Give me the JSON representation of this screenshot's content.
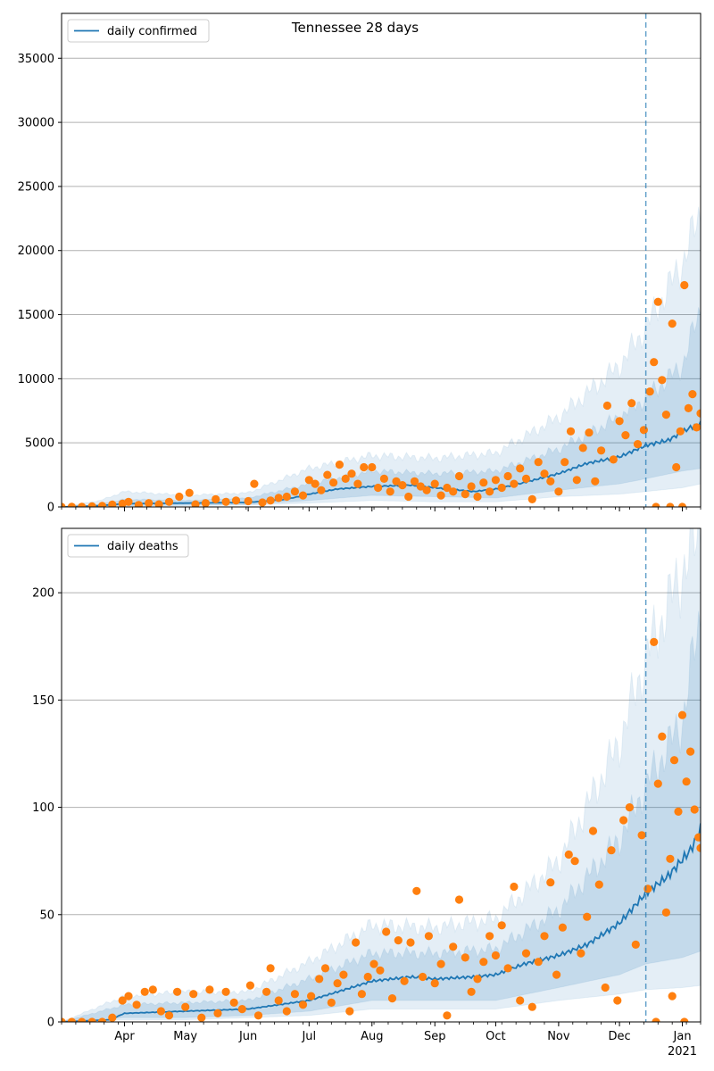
{
  "title": "Tennessee 28 days",
  "colors": {
    "line": "#1f77b4",
    "points": "#ff7f0e",
    "band": "#1f77b4",
    "grid": "#b0b0b0",
    "vline": "#1f77b4"
  },
  "x_axis": {
    "start": "2020-03-01",
    "end": "2021-01-10",
    "month_labels": [
      "Apr",
      "May",
      "Jun",
      "Jul",
      "Aug",
      "Sep",
      "Oct",
      "Nov",
      "Dec",
      "Jan"
    ],
    "month_dates": [
      "2020-04-01",
      "2020-05-01",
      "2020-06-01",
      "2020-07-01",
      "2020-08-01",
      "2020-09-01",
      "2020-10-01",
      "2020-11-01",
      "2020-12-01",
      "2021-01-01"
    ],
    "year_label": "2021",
    "vline_date": "2020-12-14"
  },
  "chart_data": [
    {
      "type": "line",
      "id": "confirmed",
      "legend": "daily confirmed",
      "legend_position": "top-left",
      "ylim": [
        0,
        38500
      ],
      "yticks": [
        0,
        5000,
        10000,
        15000,
        20000,
        25000,
        30000,
        35000
      ],
      "grid": true,
      "fit_knots": [
        [
          "2020-03-01",
          0
        ],
        [
          "2020-03-20",
          100
        ],
        [
          "2020-04-01",
          250
        ],
        [
          "2020-05-01",
          300
        ],
        [
          "2020-06-01",
          350
        ],
        [
          "2020-06-20",
          600
        ],
        [
          "2020-07-01",
          1000
        ],
        [
          "2020-07-15",
          1400
        ],
        [
          "2020-08-01",
          1600
        ],
        [
          "2020-08-20",
          1700
        ],
        [
          "2020-09-01",
          1500
        ],
        [
          "2020-09-20",
          1200
        ],
        [
          "2020-10-01",
          1400
        ],
        [
          "2020-10-15",
          1900
        ],
        [
          "2020-11-01",
          2600
        ],
        [
          "2020-11-15",
          3400
        ],
        [
          "2020-12-01",
          3900
        ],
        [
          "2020-12-14",
          4800
        ],
        [
          "2020-12-25",
          5200
        ],
        [
          "2021-01-05",
          6200
        ],
        [
          "2021-01-10",
          6500
        ]
      ],
      "band_knots": [
        [
          "2020-03-01",
          0,
          0,
          0,
          0
        ],
        [
          "2020-03-20",
          500,
          200,
          50,
          20
        ],
        [
          "2020-04-01",
          1200,
          600,
          100,
          50
        ],
        [
          "2020-05-01",
          900,
          500,
          150,
          100
        ],
        [
          "2020-06-01",
          1100,
          700,
          200,
          150
        ],
        [
          "2020-07-01",
          3000,
          1800,
          500,
          300
        ],
        [
          "2020-08-01",
          4000,
          2800,
          900,
          500
        ],
        [
          "2020-09-01",
          3800,
          2600,
          800,
          400
        ],
        [
          "2020-10-01",
          4200,
          2800,
          700,
          400
        ],
        [
          "2020-11-01",
          7000,
          4500,
          1300,
          800
        ],
        [
          "2020-12-01",
          11000,
          7000,
          1800,
          1000
        ],
        [
          "2020-12-14",
          14000,
          8500,
          2200,
          1200
        ],
        [
          "2021-01-01",
          19000,
          11000,
          2800,
          1500
        ],
        [
          "2021-01-10",
          23000,
          15500,
          3000,
          1800
        ]
      ],
      "observed": [
        [
          "2020-03-01",
          0
        ],
        [
          "2020-03-06",
          5
        ],
        [
          "2020-03-11",
          10
        ],
        [
          "2020-03-16",
          40
        ],
        [
          "2020-03-21",
          80
        ],
        [
          "2020-03-26",
          180
        ],
        [
          "2020-03-31",
          250
        ],
        [
          "2020-04-03",
          400
        ],
        [
          "2020-04-08",
          150
        ],
        [
          "2020-04-13",
          300
        ],
        [
          "2020-04-18",
          200
        ],
        [
          "2020-04-23",
          400
        ],
        [
          "2020-04-28",
          800
        ],
        [
          "2020-05-03",
          1100
        ],
        [
          "2020-05-06",
          200
        ],
        [
          "2020-05-11",
          300
        ],
        [
          "2020-05-16",
          600
        ],
        [
          "2020-05-21",
          400
        ],
        [
          "2020-05-26",
          500
        ],
        [
          "2020-06-01",
          450
        ],
        [
          "2020-06-04",
          1800
        ],
        [
          "2020-06-08",
          350
        ],
        [
          "2020-06-12",
          500
        ],
        [
          "2020-06-16",
          700
        ],
        [
          "2020-06-20",
          800
        ],
        [
          "2020-06-24",
          1200
        ],
        [
          "2020-06-28",
          900
        ],
        [
          "2020-07-01",
          2100
        ],
        [
          "2020-07-04",
          1800
        ],
        [
          "2020-07-07",
          1300
        ],
        [
          "2020-07-10",
          2500
        ],
        [
          "2020-07-13",
          1900
        ],
        [
          "2020-07-16",
          3300
        ],
        [
          "2020-07-19",
          2200
        ],
        [
          "2020-07-22",
          2600
        ],
        [
          "2020-07-25",
          1800
        ],
        [
          "2020-07-28",
          3100
        ],
        [
          "2020-08-01",
          3100
        ],
        [
          "2020-08-04",
          1500
        ],
        [
          "2020-08-07",
          2200
        ],
        [
          "2020-08-10",
          1200
        ],
        [
          "2020-08-13",
          2000
        ],
        [
          "2020-08-16",
          1700
        ],
        [
          "2020-08-19",
          800
        ],
        [
          "2020-08-22",
          2000
        ],
        [
          "2020-08-25",
          1600
        ],
        [
          "2020-08-28",
          1300
        ],
        [
          "2020-09-01",
          1800
        ],
        [
          "2020-09-04",
          900
        ],
        [
          "2020-09-07",
          1500
        ],
        [
          "2020-09-10",
          1200
        ],
        [
          "2020-09-13",
          2400
        ],
        [
          "2020-09-16",
          1000
        ],
        [
          "2020-09-19",
          1600
        ],
        [
          "2020-09-22",
          800
        ],
        [
          "2020-09-25",
          1900
        ],
        [
          "2020-09-28",
          1200
        ],
        [
          "2020-10-01",
          2100
        ],
        [
          "2020-10-04",
          1500
        ],
        [
          "2020-10-07",
          2400
        ],
        [
          "2020-10-10",
          1800
        ],
        [
          "2020-10-13",
          3000
        ],
        [
          "2020-10-16",
          2200
        ],
        [
          "2020-10-19",
          600
        ],
        [
          "2020-10-22",
          3500
        ],
        [
          "2020-10-25",
          2600
        ],
        [
          "2020-10-28",
          2000
        ],
        [
          "2020-11-01",
          1200
        ],
        [
          "2020-11-04",
          3500
        ],
        [
          "2020-11-07",
          5900
        ],
        [
          "2020-11-10",
          2100
        ],
        [
          "2020-11-13",
          4600
        ],
        [
          "2020-11-16",
          5800
        ],
        [
          "2020-11-19",
          2000
        ],
        [
          "2020-11-22",
          4400
        ],
        [
          "2020-11-25",
          7900
        ],
        [
          "2020-11-28",
          3700
        ],
        [
          "2020-12-01",
          6700
        ],
        [
          "2020-12-04",
          5600
        ],
        [
          "2020-12-07",
          8100
        ],
        [
          "2020-12-10",
          4900
        ],
        [
          "2020-12-13",
          6000
        ],
        [
          "2020-12-16",
          9000
        ],
        [
          "2020-12-18",
          11300
        ],
        [
          "2020-12-20",
          16000
        ],
        [
          "2020-12-22",
          9900
        ],
        [
          "2020-12-24",
          7200
        ],
        [
          "2020-12-27",
          14300
        ],
        [
          "2020-12-29",
          3100
        ],
        [
          "2020-12-31",
          5900
        ],
        [
          "2021-01-02",
          17300
        ],
        [
          "2021-01-04",
          7700
        ],
        [
          "2021-01-06",
          8800
        ],
        [
          "2021-01-08",
          6200
        ],
        [
          "2021-01-10",
          7300
        ],
        [
          "2020-12-19",
          0
        ],
        [
          "2020-12-26",
          0
        ],
        [
          "2021-01-01",
          0
        ]
      ]
    },
    {
      "type": "line",
      "id": "deaths",
      "legend": "daily deaths",
      "legend_position": "top-left",
      "ylim": [
        0,
        230
      ],
      "yticks": [
        0,
        50,
        100,
        150,
        200
      ],
      "grid": true,
      "fit_knots": [
        [
          "2020-03-01",
          0
        ],
        [
          "2020-03-25",
          1
        ],
        [
          "2020-04-01",
          4
        ],
        [
          "2020-05-01",
          5
        ],
        [
          "2020-06-01",
          6
        ],
        [
          "2020-07-01",
          10
        ],
        [
          "2020-07-15",
          14
        ],
        [
          "2020-08-01",
          19
        ],
        [
          "2020-08-20",
          21
        ],
        [
          "2020-09-01",
          20
        ],
        [
          "2020-09-20",
          21
        ],
        [
          "2020-10-01",
          22
        ],
        [
          "2020-10-15",
          27
        ],
        [
          "2020-11-01",
          31
        ],
        [
          "2020-11-15",
          36
        ],
        [
          "2020-12-01",
          46
        ],
        [
          "2020-12-14",
          60
        ],
        [
          "2020-12-25",
          68
        ],
        [
          "2021-01-05",
          80
        ],
        [
          "2021-01-10",
          90
        ]
      ],
      "band_knots": [
        [
          "2020-03-01",
          0,
          0,
          0,
          0
        ],
        [
          "2020-04-01",
          12,
          8,
          2,
          1
        ],
        [
          "2020-05-01",
          14,
          9,
          2,
          1
        ],
        [
          "2020-06-01",
          14,
          10,
          3,
          2
        ],
        [
          "2020-07-01",
          28,
          20,
          5,
          3
        ],
        [
          "2020-08-01",
          45,
          32,
          10,
          6
        ],
        [
          "2020-09-01",
          44,
          32,
          10,
          6
        ],
        [
          "2020-10-01",
          48,
          34,
          10,
          6
        ],
        [
          "2020-11-01",
          75,
          52,
          16,
          10
        ],
        [
          "2020-12-01",
          130,
          85,
          22,
          13
        ],
        [
          "2020-12-14",
          170,
          110,
          27,
          15
        ],
        [
          "2021-01-01",
          210,
          140,
          30,
          16
        ],
        [
          "2021-01-10",
          230,
          190,
          33,
          17
        ]
      ],
      "observed": [
        [
          "2020-03-01",
          0
        ],
        [
          "2020-03-06",
          0
        ],
        [
          "2020-03-11",
          0
        ],
        [
          "2020-03-16",
          0
        ],
        [
          "2020-03-21",
          0
        ],
        [
          "2020-03-26",
          2
        ],
        [
          "2020-03-31",
          10
        ],
        [
          "2020-04-03",
          12
        ],
        [
          "2020-04-07",
          8
        ],
        [
          "2020-04-11",
          14
        ],
        [
          "2020-04-15",
          15
        ],
        [
          "2020-04-19",
          5
        ],
        [
          "2020-04-23",
          3
        ],
        [
          "2020-04-27",
          14
        ],
        [
          "2020-05-01",
          7
        ],
        [
          "2020-05-05",
          13
        ],
        [
          "2020-05-09",
          2
        ],
        [
          "2020-05-13",
          15
        ],
        [
          "2020-05-17",
          4
        ],
        [
          "2020-05-21",
          14
        ],
        [
          "2020-05-25",
          9
        ],
        [
          "2020-05-29",
          6
        ],
        [
          "2020-06-02",
          17
        ],
        [
          "2020-06-06",
          3
        ],
        [
          "2020-06-10",
          14
        ],
        [
          "2020-06-12",
          25
        ],
        [
          "2020-06-16",
          10
        ],
        [
          "2020-06-20",
          5
        ],
        [
          "2020-06-24",
          13
        ],
        [
          "2020-06-28",
          8
        ],
        [
          "2020-07-02",
          12
        ],
        [
          "2020-07-06",
          20
        ],
        [
          "2020-07-09",
          25
        ],
        [
          "2020-07-12",
          9
        ],
        [
          "2020-07-15",
          18
        ],
        [
          "2020-07-18",
          22
        ],
        [
          "2020-07-21",
          5
        ],
        [
          "2020-07-24",
          37
        ],
        [
          "2020-07-27",
          13
        ],
        [
          "2020-07-30",
          21
        ],
        [
          "2020-08-02",
          27
        ],
        [
          "2020-08-05",
          24
        ],
        [
          "2020-08-08",
          42
        ],
        [
          "2020-08-11",
          11
        ],
        [
          "2020-08-14",
          38
        ],
        [
          "2020-08-17",
          19
        ],
        [
          "2020-08-20",
          37
        ],
        [
          "2020-08-23",
          61
        ],
        [
          "2020-08-26",
          21
        ],
        [
          "2020-08-29",
          40
        ],
        [
          "2020-09-01",
          18
        ],
        [
          "2020-09-04",
          27
        ],
        [
          "2020-09-07",
          3
        ],
        [
          "2020-09-10",
          35
        ],
        [
          "2020-09-13",
          57
        ],
        [
          "2020-09-16",
          30
        ],
        [
          "2020-09-19",
          14
        ],
        [
          "2020-09-22",
          20
        ],
        [
          "2020-09-25",
          28
        ],
        [
          "2020-09-28",
          40
        ],
        [
          "2020-10-01",
          31
        ],
        [
          "2020-10-04",
          45
        ],
        [
          "2020-10-07",
          25
        ],
        [
          "2020-10-10",
          63
        ],
        [
          "2020-10-13",
          10
        ],
        [
          "2020-10-16",
          32
        ],
        [
          "2020-10-19",
          7
        ],
        [
          "2020-10-22",
          28
        ],
        [
          "2020-10-25",
          40
        ],
        [
          "2020-10-28",
          65
        ],
        [
          "2020-10-31",
          22
        ],
        [
          "2020-11-03",
          44
        ],
        [
          "2020-11-06",
          78
        ],
        [
          "2020-11-09",
          75
        ],
        [
          "2020-11-12",
          32
        ],
        [
          "2020-11-15",
          49
        ],
        [
          "2020-11-18",
          89
        ],
        [
          "2020-11-21",
          64
        ],
        [
          "2020-11-24",
          16
        ],
        [
          "2020-11-27",
          80
        ],
        [
          "2020-11-30",
          10
        ],
        [
          "2020-12-03",
          94
        ],
        [
          "2020-12-06",
          100
        ],
        [
          "2020-12-09",
          36
        ],
        [
          "2020-12-12",
          87
        ],
        [
          "2020-12-15",
          62
        ],
        [
          "2020-12-18",
          177
        ],
        [
          "2020-12-20",
          111
        ],
        [
          "2020-12-22",
          133
        ],
        [
          "2020-12-24",
          51
        ],
        [
          "2020-12-26",
          76
        ],
        [
          "2020-12-28",
          122
        ],
        [
          "2020-12-30",
          98
        ],
        [
          "2021-01-01",
          143
        ],
        [
          "2021-01-03",
          112
        ],
        [
          "2021-01-05",
          126
        ],
        [
          "2021-01-07",
          99
        ],
        [
          "2021-01-09",
          86
        ],
        [
          "2021-01-10",
          81
        ],
        [
          "2020-12-19",
          0
        ],
        [
          "2020-12-27",
          12
        ],
        [
          "2021-01-02",
          0
        ]
      ]
    }
  ]
}
